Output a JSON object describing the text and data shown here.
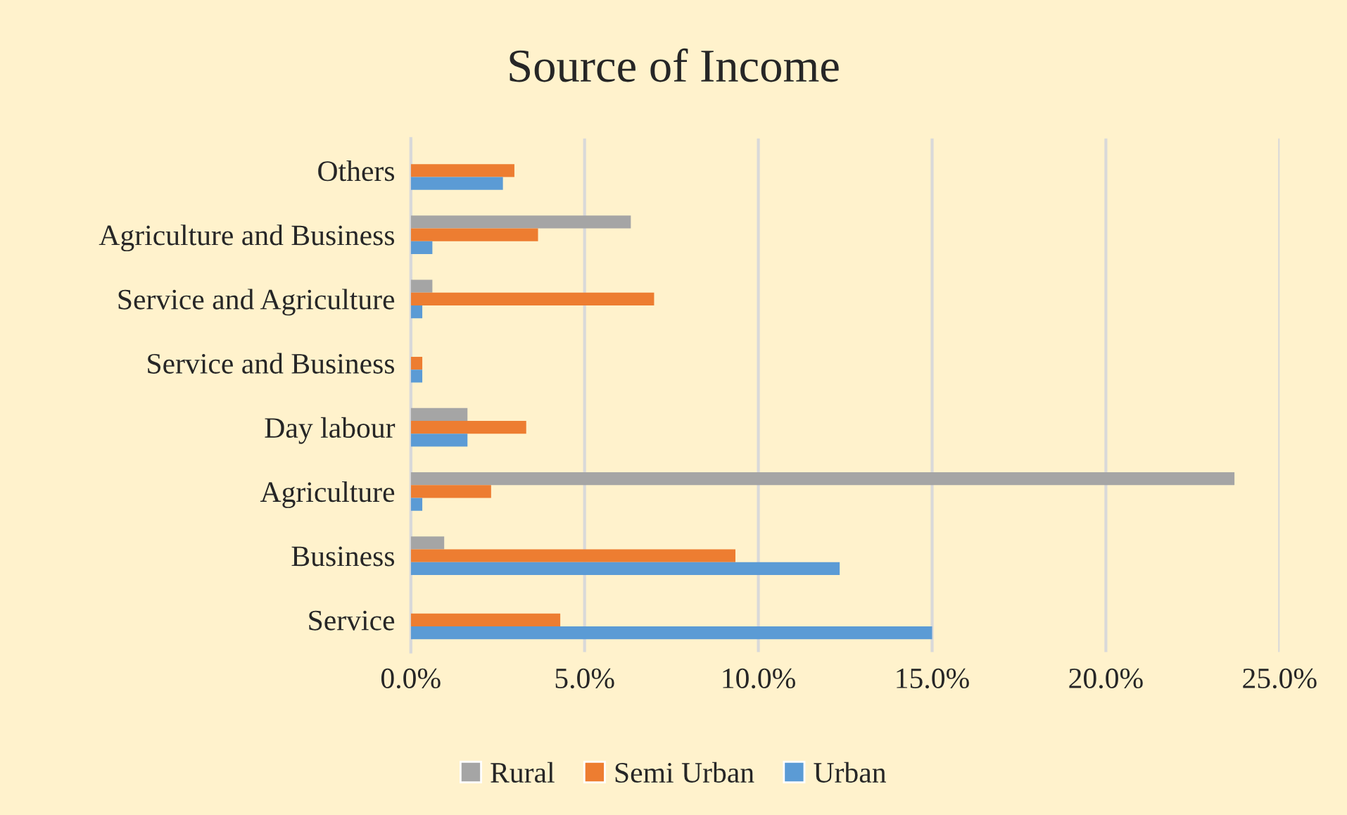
{
  "chart_data": {
    "type": "bar",
    "orientation": "horizontal",
    "title": "Source of Income",
    "categories": [
      "Others",
      "Agriculture and Business",
      "Service and Agriculture",
      "Service and Business",
      "Day labour",
      "Agriculture",
      "Business",
      "Service"
    ],
    "series": [
      {
        "name": "Rural",
        "color": "#a5a5a5",
        "values": [
          0,
          6.33,
          0.62,
          0,
          1.63,
          23.7,
          0.96,
          0
        ]
      },
      {
        "name": "Semi Urban",
        "color": "#ed7d31",
        "values": [
          2.98,
          3.66,
          7.0,
          0.33,
          3.32,
          2.31,
          9.34,
          4.3
        ]
      },
      {
        "name": "Urban",
        "color": "#5b9bd5",
        "values": [
          2.65,
          0.62,
          0.33,
          0.33,
          1.63,
          0.33,
          12.34,
          15.0
        ]
      }
    ],
    "xlim": [
      0,
      25
    ],
    "xticks": [
      {
        "value": 0,
        "label": "0.0%"
      },
      {
        "value": 5,
        "label": "5.0%"
      },
      {
        "value": 10,
        "label": "10.0%"
      },
      {
        "value": 15,
        "label": "15.0%"
      },
      {
        "value": 20,
        "label": "20.0%"
      },
      {
        "value": 25,
        "label": "25.0%"
      }
    ],
    "grid": "x",
    "legend": "bottom"
  }
}
